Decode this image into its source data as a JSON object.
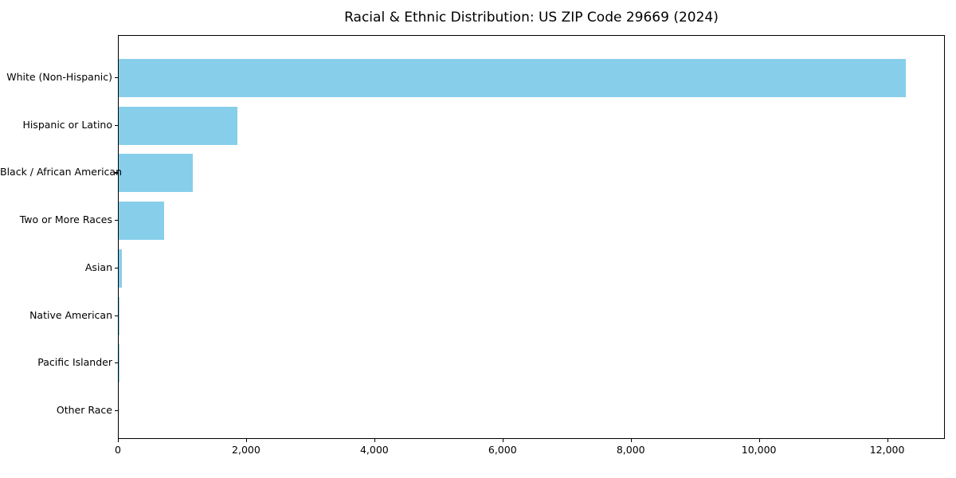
{
  "chart_data": {
    "type": "bar",
    "orientation": "horizontal",
    "title": "Racial & Ethnic Distribution: US ZIP Code 29669 (2024)",
    "categories": [
      "White (Non-Hispanic)",
      "Hispanic or Latino",
      "Black / African American",
      "Two or More Races",
      "Asian",
      "Native American",
      "Pacific Islander",
      "Other Race"
    ],
    "values": [
      12280,
      1853,
      1155,
      705,
      55,
      12,
      3,
      0
    ],
    "xlabel": "",
    "ylabel": "",
    "xlim": [
      0,
      12900
    ],
    "xticks": [
      0,
      2000,
      4000,
      6000,
      8000,
      10000,
      12000
    ],
    "xtick_labels": [
      "0",
      "2,000",
      "4,000",
      "6,000",
      "8,000",
      "10,000",
      "12,000"
    ],
    "bar_color": "#87CEEB",
    "axis_color": "#000000",
    "background_color": "#ffffff",
    "grid": false,
    "legend": "none"
  }
}
